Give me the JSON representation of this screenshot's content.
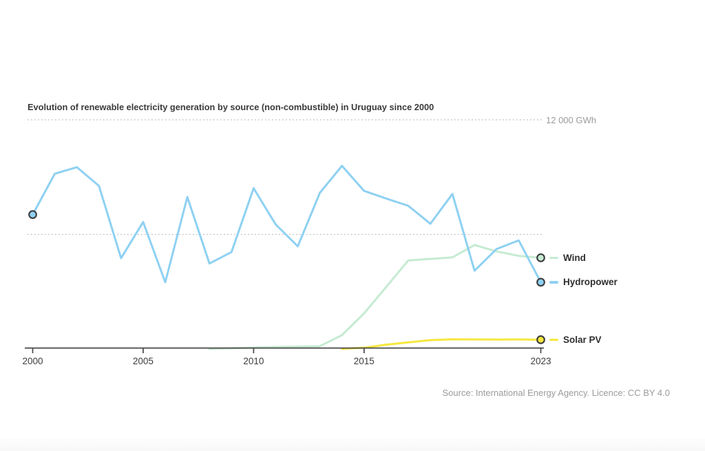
{
  "chart": {
    "title": "Evolution of renewable electricity generation by source (non-combustible) in Uruguay since 2000",
    "y_axis_top_label": "12 000 GWh",
    "source": "Source: International Energy Agency. Licence: CC BY 4.0"
  },
  "chart_data": {
    "type": "line",
    "title": "Evolution of renewable electricity generation by source (non-combustible) in Uruguay since 2000",
    "unit": "GWh",
    "x": [
      2000,
      2001,
      2002,
      2003,
      2004,
      2005,
      2006,
      2007,
      2008,
      2009,
      2010,
      2011,
      2012,
      2013,
      2014,
      2015,
      2016,
      2017,
      2018,
      2019,
      2020,
      2021,
      2022,
      2023
    ],
    "x_ticks": [
      2000,
      2005,
      2010,
      2015,
      2023
    ],
    "ylim": [
      0,
      12000
    ],
    "gridlines_gwh": [
      6000,
      12000
    ],
    "gridline_label_at_12000": "12 000 GWh",
    "grid": "horizontal-dotted",
    "legend_position": "right-of-line-ends",
    "series": [
      {
        "name": "Hydropower",
        "color": "#8ed1f2",
        "values": [
          7040,
          9180,
          9520,
          8540,
          4760,
          6650,
          3500,
          7960,
          4480,
          5080,
          8420,
          6520,
          5380,
          8180,
          9590,
          8280,
          7880,
          7500,
          6560,
          8120,
          4100,
          5240,
          5690,
          3500
        ]
      },
      {
        "name": "Wind",
        "color": "#c5ebd2",
        "values": [
          null,
          null,
          null,
          null,
          null,
          null,
          null,
          null,
          20,
          40,
          80,
          110,
          130,
          155,
          730,
          1870,
          3250,
          4640,
          4720,
          4800,
          5450,
          5110,
          4880,
          4780
        ]
      },
      {
        "name": "Solar PV",
        "color": "#f6e73e",
        "values": [
          null,
          null,
          null,
          null,
          null,
          null,
          null,
          null,
          null,
          null,
          null,
          null,
          null,
          null,
          15,
          70,
          230,
          350,
          470,
          515,
          505,
          500,
          505,
          490
        ]
      }
    ],
    "markers": [
      {
        "series": 0,
        "year": 2000
      },
      {
        "series": 0,
        "year": 2023
      },
      {
        "series": 1,
        "year": 2023
      },
      {
        "series": 2,
        "year": 2023
      }
    ],
    "marker_outline_color": "#3b3b3b"
  },
  "legend": {
    "order": [
      "Wind",
      "Hydropower",
      "Solar PV"
    ]
  }
}
